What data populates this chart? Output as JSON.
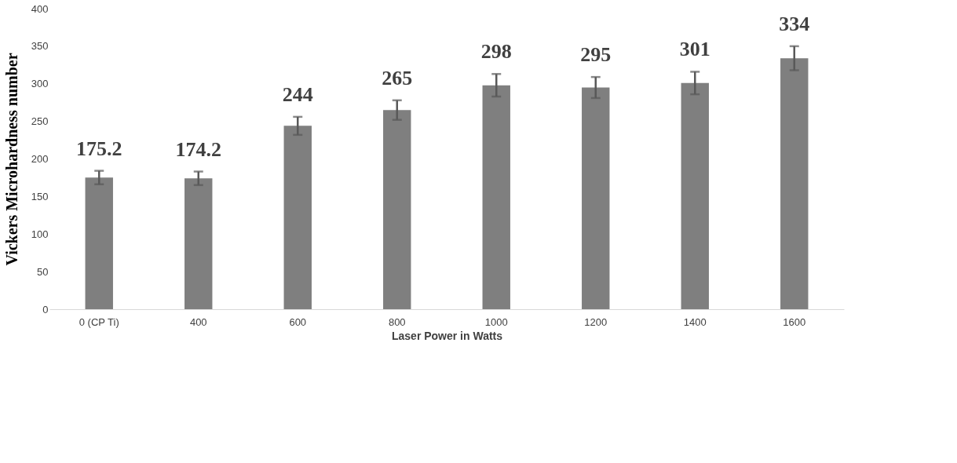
{
  "chart_data": {
    "type": "bar",
    "xlabel": "Laser Power in Watts",
    "ylabel": "Vickers Microhardness number",
    "categories": [
      "0 (CP Ti)",
      "400",
      "600",
      "800",
      "1000",
      "1200",
      "1400",
      "1600"
    ],
    "values": [
      175.2,
      174.2,
      244,
      265,
      298,
      295,
      301,
      334
    ],
    "errors": [
      9,
      9,
      12,
      13,
      15,
      14,
      15,
      16
    ],
    "color": "#7f7f7f",
    "ylim": [
      0,
      400
    ],
    "yticks": [
      0,
      50,
      100,
      150,
      200,
      250,
      300,
      350,
      400
    ],
    "grid": false,
    "data_labels": true
  }
}
